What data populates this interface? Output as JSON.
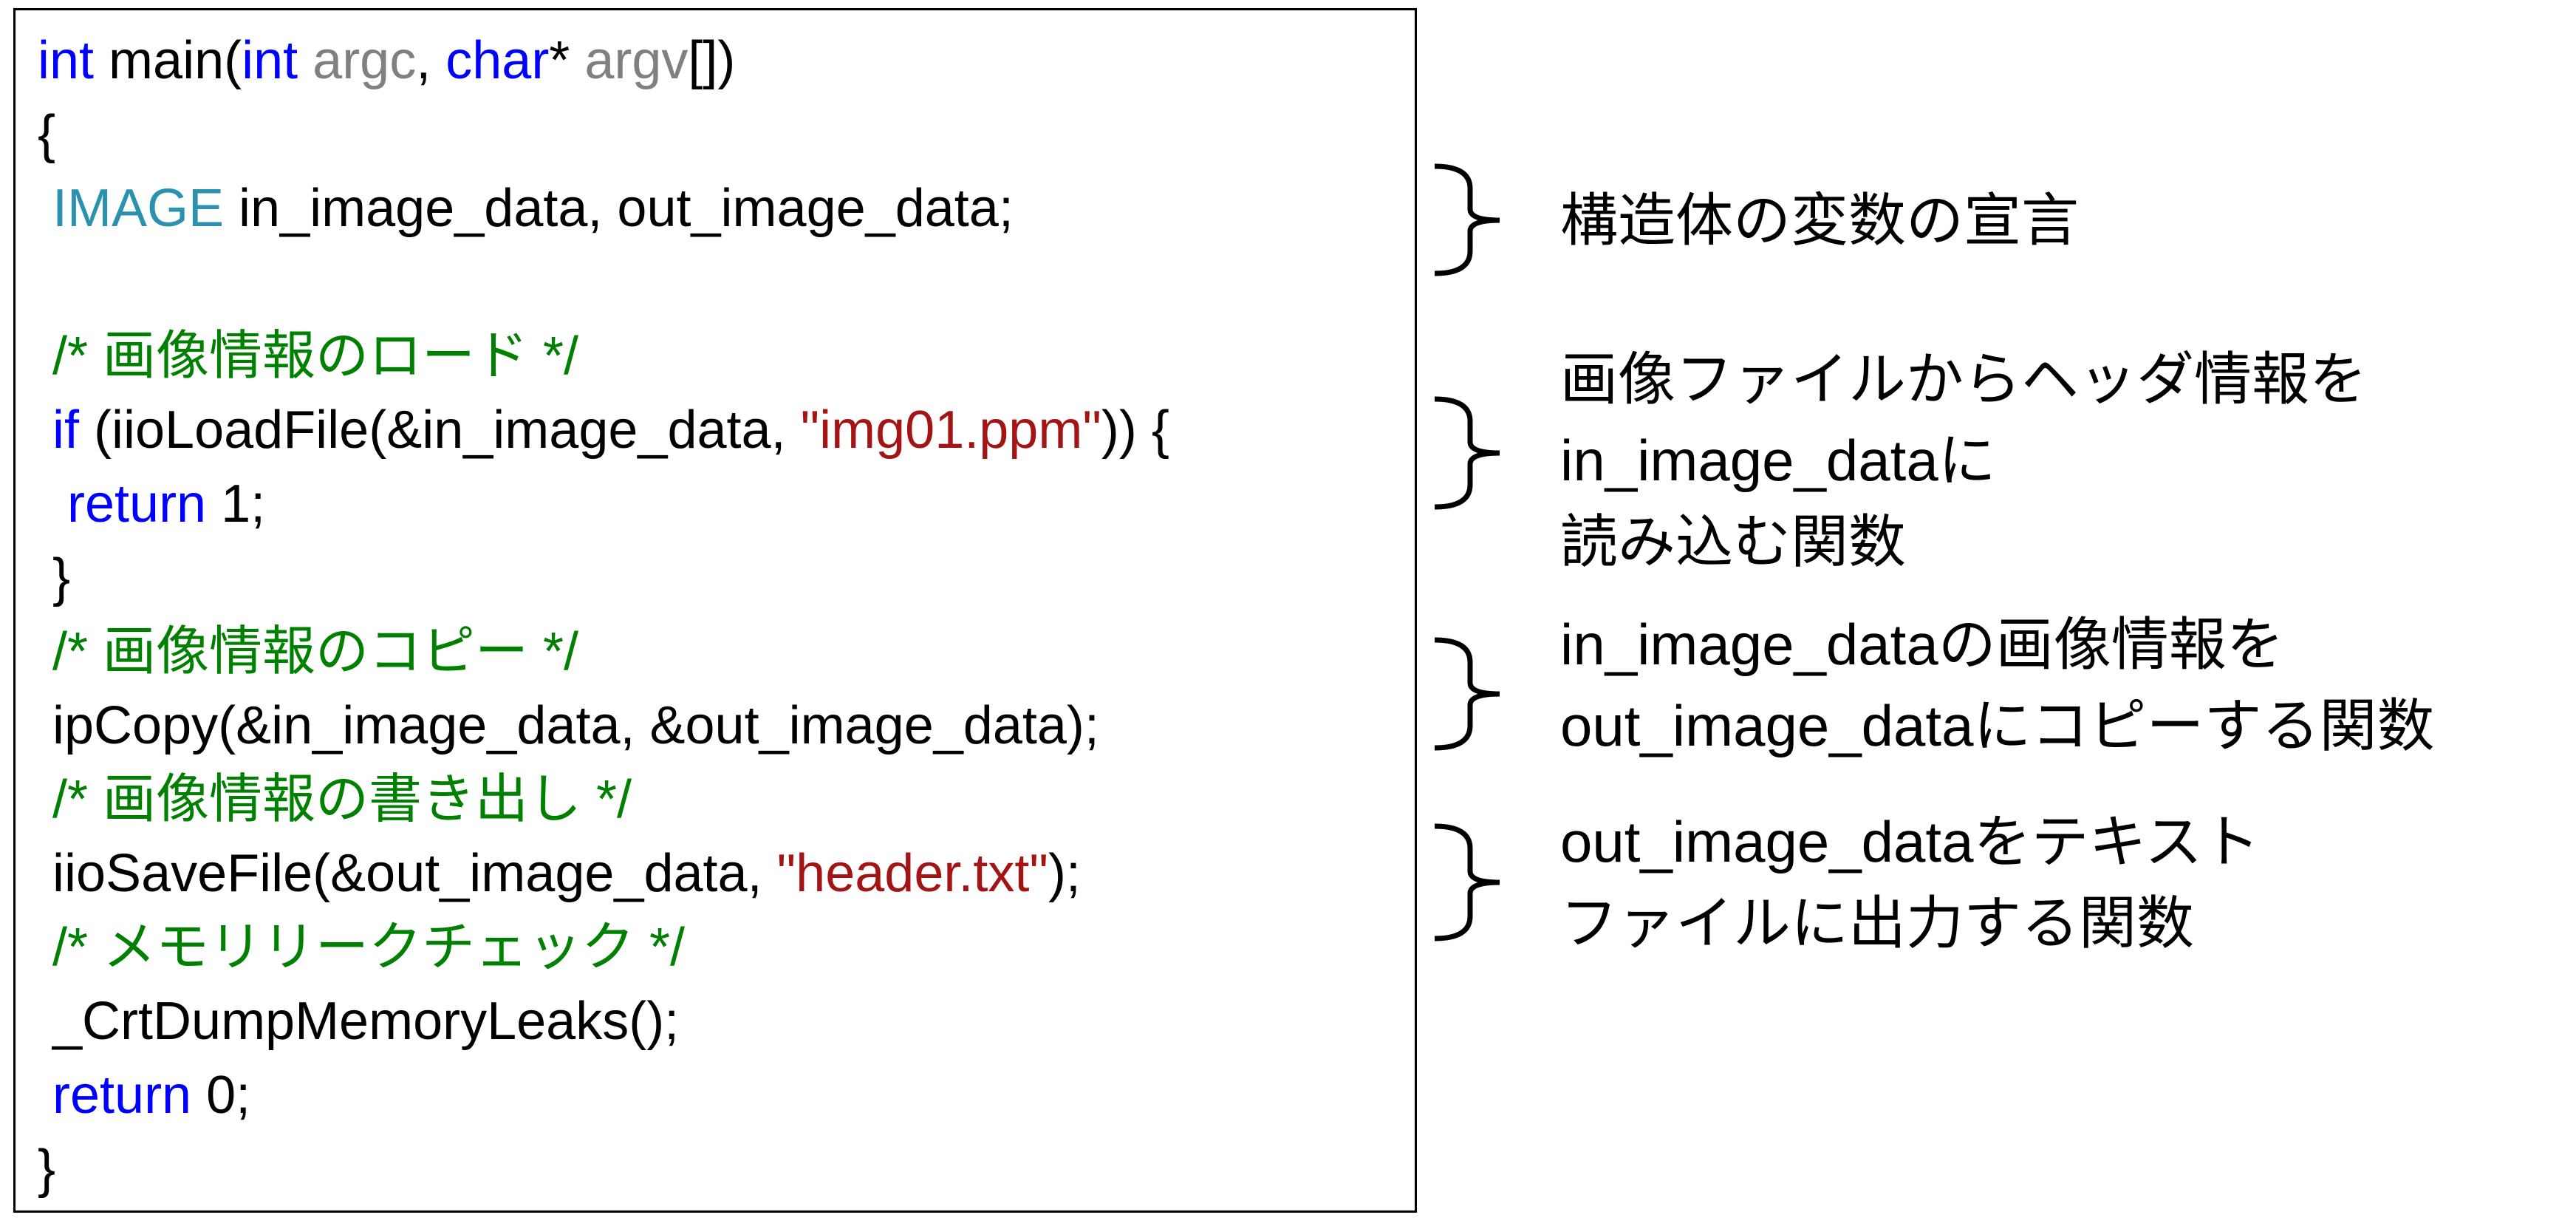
{
  "code": {
    "lines": [
      [
        {
          "text": "int",
          "color": "#0000ff"
        },
        {
          "text": " main("
        },
        {
          "text": "int",
          "color": "#0000ff"
        },
        {
          "text": " "
        },
        {
          "text": "argc",
          "color": "#808080"
        },
        {
          "text": ", "
        },
        {
          "text": "char",
          "color": "#0000ff"
        },
        {
          "text": "* "
        },
        {
          "text": "argv",
          "color": "#808080"
        },
        {
          "text": "[])"
        }
      ],
      [
        {
          "text": "{"
        }
      ],
      [
        {
          "text": " "
        },
        {
          "text": "IMAGE",
          "color": "#2b91af"
        },
        {
          "text": " in_image_data, out_image_data;"
        }
      ],
      [],
      [
        {
          "text": " /* 画像情報のロード */",
          "color": "#008000"
        }
      ],
      [
        {
          "text": " "
        },
        {
          "text": "if",
          "color": "#0000ff"
        },
        {
          "text": " (iioLoadFile(&in_image_data, "
        },
        {
          "text": "\"img01.ppm\"",
          "color": "#a31515"
        },
        {
          "text": ")) {"
        }
      ],
      [
        {
          "text": "  "
        },
        {
          "text": "return",
          "color": "#0000ff"
        },
        {
          "text": " 1;"
        }
      ],
      [
        {
          "text": " }"
        }
      ],
      [
        {
          "text": " /* 画像情報のコピー */",
          "color": "#008000"
        }
      ],
      [
        {
          "text": " ipCopy(&in_image_data, &out_image_data);"
        }
      ],
      [
        {
          "text": " /* 画像情報の書き出し */",
          "color": "#008000"
        }
      ],
      [
        {
          "text": " iioSaveFile(&out_image_data, "
        },
        {
          "text": "\"header.txt\"",
          "color": "#a31515"
        },
        {
          "text": ");"
        }
      ],
      [
        {
          "text": " /* メモリリークチェック */",
          "color": "#008000"
        }
      ],
      [
        {
          "text": " _CrtDumpMemoryLeaks();"
        }
      ],
      [
        {
          "text": " "
        },
        {
          "text": "return",
          "color": "#0000ff"
        },
        {
          "text": " 0;"
        }
      ],
      [
        {
          "text": "}"
        }
      ]
    ]
  },
  "notes": [
    {
      "lines": [
        "構造体の変数の宣言"
      ]
    },
    {
      "lines": [
        "画像ファイルからヘッダ情報を",
        "in_image_dataに",
        "読み込む関数"
      ]
    },
    {
      "lines": [
        "in_image_dataの画像情報を",
        "out_image_dataにコピーする関数"
      ]
    },
    {
      "lines": [
        "out_image_dataをテキスト",
        "ファイルに出力する関数"
      ]
    }
  ]
}
